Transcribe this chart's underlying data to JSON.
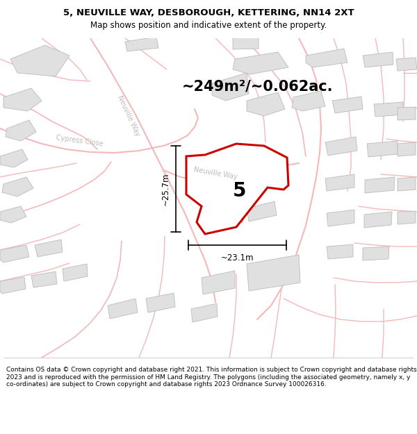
{
  "title_line1": "5, NEUVILLE WAY, DESBOROUGH, KETTERING, NN14 2XT",
  "title_line2": "Map shows position and indicative extent of the property.",
  "area_text": "~249m²/~0.062ac.",
  "label_5": "5",
  "dim_height": "~25.7m",
  "dim_width": "~23.1m",
  "footer": "Contains OS data © Crown copyright and database right 2021. This information is subject to Crown copyright and database rights 2023 and is reproduced with the permission of HM Land Registry. The polygons (including the associated geometry, namely x, y co-ordinates) are subject to Crown copyright and database rights 2023 Ordnance Survey 100026316.",
  "map_bg": "#ffffff",
  "bldg_face": "#e0e0e0",
  "bldg_edge": "#bbbbbb",
  "road_color": "#f4b8b8",
  "road_lw": 1.2,
  "highlight_color": "#cc0000",
  "text_color": "#000000",
  "road_label_color": "#bbbbbb"
}
